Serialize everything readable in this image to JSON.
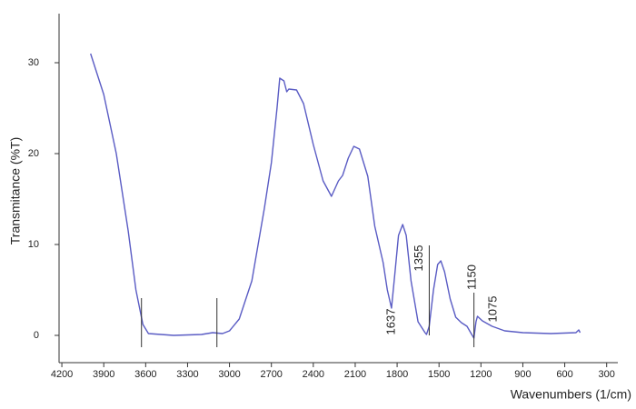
{
  "chart_data": {
    "type": "line",
    "x_label": "Wavenumbers  (1/cm)",
    "y_label": "Transmitance (%T)",
    "xlim": [
      4220,
      220
    ],
    "xticks": [
      4200,
      3900,
      3600,
      3300,
      3000,
      2700,
      2400,
      2100,
      1800,
      1500,
      1200,
      900,
      600,
      300
    ],
    "ylim": [
      -3,
      35
    ],
    "yticks": [
      0,
      10,
      20,
      30
    ],
    "series": [
      {
        "color": "#5a5cc4",
        "x": [
          3994,
          3900,
          3810,
          3725,
          3670,
          3620,
          3580,
          3400,
          3200,
          3120,
          3050,
          3000,
          2930,
          2840,
          2750,
          2700,
          2660,
          2640,
          2610,
          2590,
          2575,
          2520,
          2470,
          2400,
          2330,
          2270,
          2220,
          2190,
          2150,
          2110,
          2070,
          2010,
          1960,
          1900,
          1870,
          1840,
          1815,
          1790,
          1760,
          1735,
          1700,
          1650,
          1600,
          1590,
          1570,
          1540,
          1510,
          1487,
          1460,
          1420,
          1380,
          1340,
          1300,
          1270,
          1250,
          1235,
          1225,
          1190,
          1120,
          1030,
          900,
          700,
          520,
          500,
          490
        ],
        "values": [
          31,
          26.5,
          20,
          11.5,
          5,
          1.2,
          0.2,
          0,
          0.1,
          0.3,
          0.2,
          0.5,
          1.8,
          6,
          14,
          19,
          25,
          28.3,
          28,
          26.8,
          27.1,
          27,
          25.5,
          21,
          17,
          15.3,
          17,
          17.6,
          19.5,
          20.8,
          20.5,
          17.5,
          12,
          8,
          5,
          3,
          7,
          11,
          12.2,
          11,
          6,
          1.5,
          0.3,
          0.1,
          1,
          5,
          7.8,
          8.2,
          7,
          4,
          2,
          1.4,
          1,
          0.2,
          -0.3,
          1.5,
          2.1,
          1.6,
          1,
          0.5,
          0.3,
          0.2,
          0.3,
          0.6,
          0.3
        ]
      }
    ],
    "markers": [
      {
        "x": 3630,
        "y": [
          -1.3,
          4.1
        ]
      },
      {
        "x": 3090,
        "y": [
          -1.3,
          4.1
        ]
      },
      {
        "x": 1570,
        "y": [
          0,
          9.9
        ]
      },
      {
        "x": 1250,
        "y": [
          -1.3,
          4.7
        ]
      }
    ],
    "annotations": [
      {
        "text": "1637",
        "x": 1840
      },
      {
        "text": "1355",
        "x": 1640
      },
      {
        "text": "1150",
        "x": 1260
      },
      {
        "text": "1075",
        "x": 1110
      }
    ]
  }
}
